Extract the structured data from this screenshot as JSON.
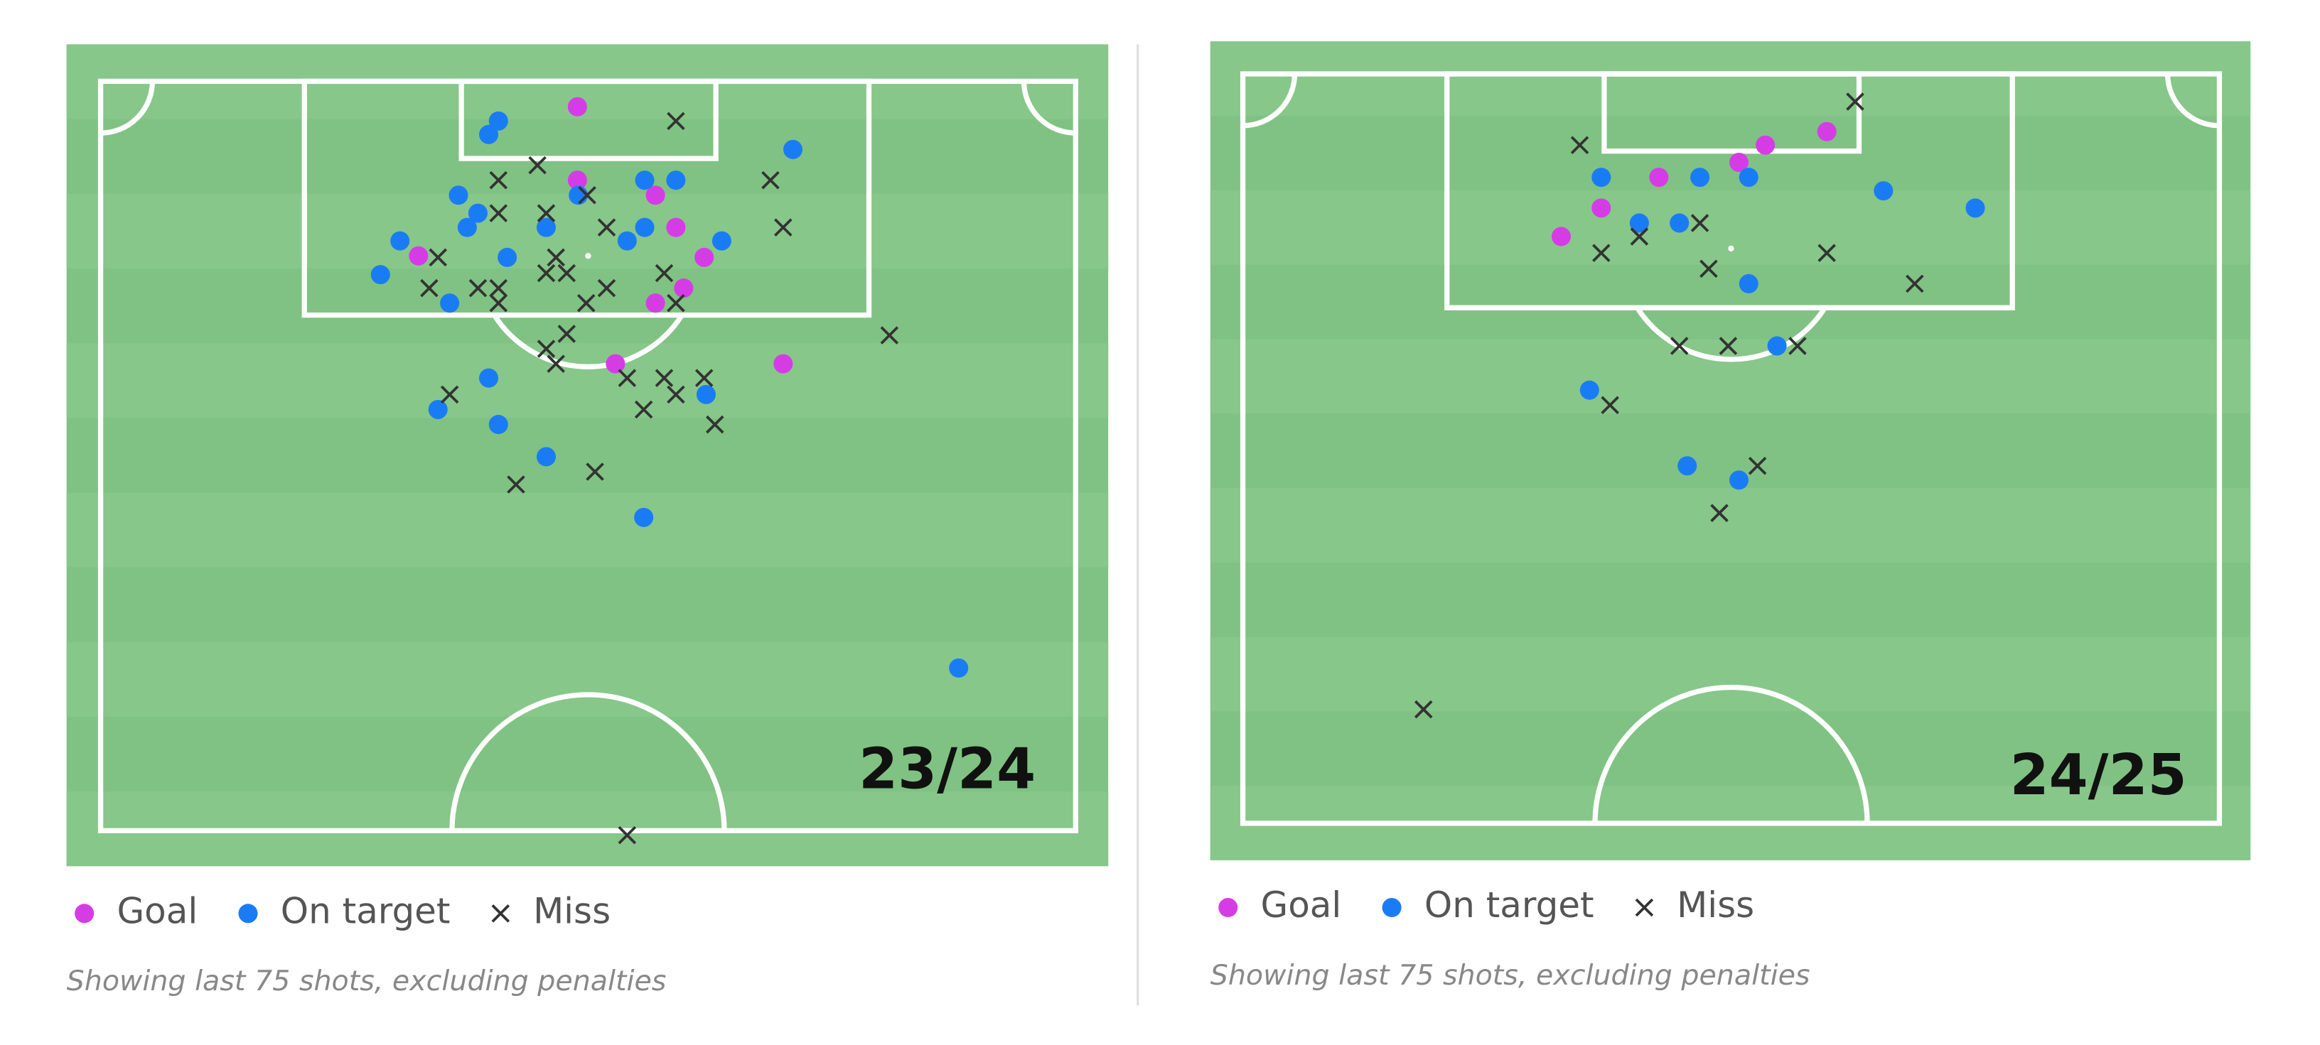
{
  "chart_data": [
    {
      "type": "scatter",
      "label": "23/24",
      "note": "Showing last 75 shots, excluding penalties",
      "series": [
        {
          "name": "Goal",
          "color": "#d63ce6",
          "marker": "dot",
          "x": [
            48.9,
            48.9,
            56.9,
            59.0,
            32.6,
            61.9,
            59.8,
            56.9,
            52.8,
            70.0
          ],
          "y": [
            3.4,
            13.2,
            15.2,
            19.5,
            23.3,
            23.5,
            27.6,
            29.6,
            37.7,
            37.7
          ]
        },
        {
          "name": "On target",
          "color": "#1a7cf5",
          "marker": "dot",
          "x": [
            40.8,
            39.8,
            71.0,
            36.7,
            49.0,
            55.8,
            59.0,
            38.7,
            37.6,
            45.7,
            55.8,
            54.0,
            30.7,
            63.7,
            41.7,
            28.7,
            35.8,
            39.8,
            34.6,
            40.8,
            62.1,
            45.7,
            55.7,
            88.0
          ],
          "y": [
            5.3,
            7.1,
            9.1,
            15.2,
            15.2,
            13.2,
            13.2,
            17.6,
            19.5,
            19.5,
            19.5,
            21.3,
            21.3,
            21.3,
            23.5,
            25.8,
            29.6,
            39.6,
            43.8,
            45.8,
            41.8,
            50.1,
            58.2,
            78.3
          ]
        },
        {
          "name": "Miss",
          "color": "#333333",
          "marker": "cross",
          "x": [
            59.0,
            44.8,
            40.8,
            68.7,
            49.9,
            40.8,
            45.7,
            70.0,
            51.9,
            34.6,
            46.7,
            45.7,
            47.8,
            57.8,
            33.7,
            38.7,
            40.8,
            51.9,
            40.8,
            49.8,
            59.0,
            47.8,
            45.7,
            46.7,
            80.9,
            54.0,
            57.8,
            61.9,
            35.8,
            59.0,
            55.7,
            63.0,
            50.7,
            42.6,
            54.0
          ],
          "y": [
            5.3,
            11.2,
            13.2,
            13.2,
            15.2,
            17.6,
            17.6,
            19.5,
            19.5,
            23.5,
            23.5,
            25.6,
            25.6,
            25.6,
            27.6,
            27.6,
            27.6,
            27.6,
            29.6,
            29.6,
            29.6,
            33.7,
            35.7,
            37.7,
            33.9,
            39.6,
            39.6,
            39.6,
            41.8,
            41.8,
            43.8,
            45.8,
            52.1,
            53.8,
            100.6
          ]
        }
      ]
    },
    {
      "type": "scatter",
      "label": "24/25",
      "note": "Showing last 75 shots, excluding penalties",
      "series": [
        {
          "name": "Goal",
          "color": "#d63ce6",
          "marker": "dot",
          "x": [
            59.8,
            53.5,
            50.8,
            42.6,
            36.7,
            32.6
          ],
          "y": [
            7.7,
            9.5,
            11.8,
            13.8,
            17.9,
            21.7
          ]
        },
        {
          "name": "On target",
          "color": "#1a7cf5",
          "marker": "dot",
          "x": [
            36.7,
            46.8,
            51.8,
            65.6,
            75.0,
            40.6,
            44.7,
            51.8,
            54.7,
            35.5,
            45.5,
            50.8
          ],
          "y": [
            13.8,
            13.8,
            13.8,
            15.6,
            17.9,
            19.9,
            19.9,
            28.0,
            36.3,
            42.2,
            52.3,
            54.2
          ]
        },
        {
          "name": "Miss",
          "color": "#333333",
          "marker": "cross",
          "x": [
            62.7,
            34.5,
            46.8,
            40.6,
            36.7,
            59.8,
            47.7,
            68.8,
            44.7,
            49.7,
            56.8,
            37.6,
            52.7,
            48.8,
            18.5
          ],
          "y": [
            3.7,
            9.5,
            19.9,
            21.7,
            23.9,
            23.9,
            26.0,
            28.0,
            36.3,
            36.3,
            36.3,
            44.2,
            52.3,
            58.6,
            84.8
          ]
        }
      ]
    }
  ]
}
